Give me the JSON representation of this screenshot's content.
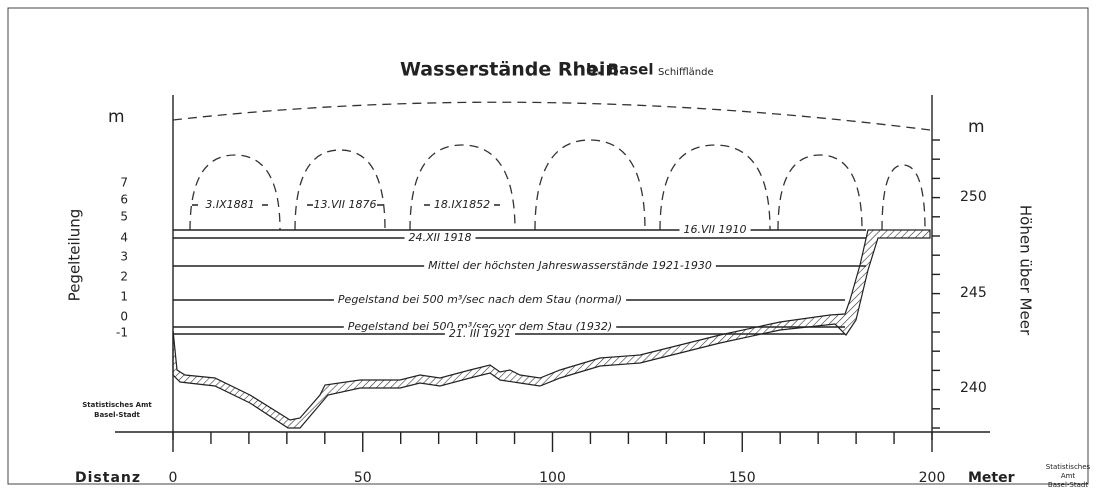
{
  "title": {
    "main": "Wasserstände Rhein",
    "place": "b. Basel",
    "site": "Schifflände"
  },
  "left_axis": {
    "unit": "m",
    "label": "Pegelteilung",
    "ticks": [
      7,
      6,
      5,
      4,
      3,
      2,
      1,
      0,
      -1
    ]
  },
  "right_axis": {
    "unit": "m",
    "label": "Höhen über Meer",
    "ticks": [
      250,
      245,
      240
    ]
  },
  "bottom_axis": {
    "label": "Distanz",
    "unit": "Meter",
    "ticks": [
      0,
      50,
      100,
      150,
      200
    ]
  },
  "floods": [
    "3.IX1881",
    "13.VII 1876",
    "18.IX1852"
  ],
  "levels": [
    "16.VII 1910",
    "24.XII 1918",
    "Mittel der höchsten Jahreswasserstände 1921-1930",
    "Pegelstand bei 500 m³/sec nach dem Stau (normal)",
    "Pegelstand bei 500 m³/sec vor dem Stau (1932)",
    "21. III 1921"
  ],
  "stamps": [
    [
      "Statistisches Amt",
      "Basel-Stadt"
    ],
    [
      "Statistisches",
      "Amt",
      "Basel-Stadt"
    ]
  ]
}
